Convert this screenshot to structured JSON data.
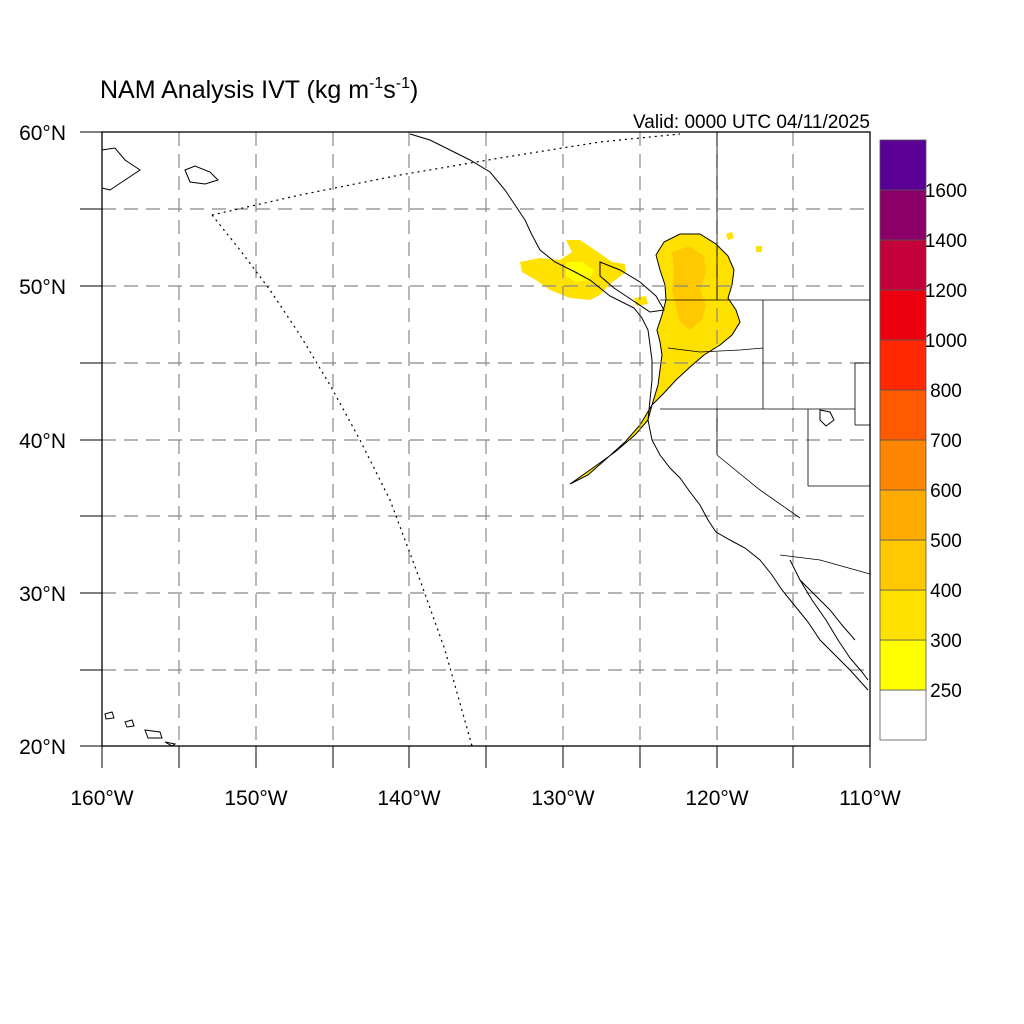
{
  "title": {
    "main": "NAM Analysis IVT (kg m",
    "sup1": "-1",
    "mid": "s",
    "sup2": "-1",
    "end": ")"
  },
  "valid_label": "Valid: 0000 UTC 04/11/2025",
  "map": {
    "lon_range": [
      -160,
      -110
    ],
    "lat_range": [
      20,
      60
    ],
    "lon_labels": [
      "160°W",
      "150°W",
      "140°W",
      "130°W",
      "120°W",
      "110°W"
    ],
    "lat_labels": [
      "60°N",
      "50°N",
      "40°N",
      "30°N",
      "20°N"
    ],
    "grid": "dashed every 5°"
  },
  "colorbar": {
    "levels": [
      "250",
      "300",
      "400",
      "500",
      "600",
      "700",
      "800",
      "1000",
      "1200",
      "1400",
      "1600"
    ],
    "colors": [
      "#ffffff",
      "#ffff00",
      "#ffe100",
      "#ffc800",
      "#ffab00",
      "#ff8600",
      "#ff5a00",
      "#ff2800",
      "#ec0010",
      "#c4003a",
      "#8a0068",
      "#5a0096"
    ]
  },
  "colors": {
    "ivt_250": "#ffff00",
    "ivt_300": "#ffe100",
    "ivt_400": "#ffc800"
  }
}
